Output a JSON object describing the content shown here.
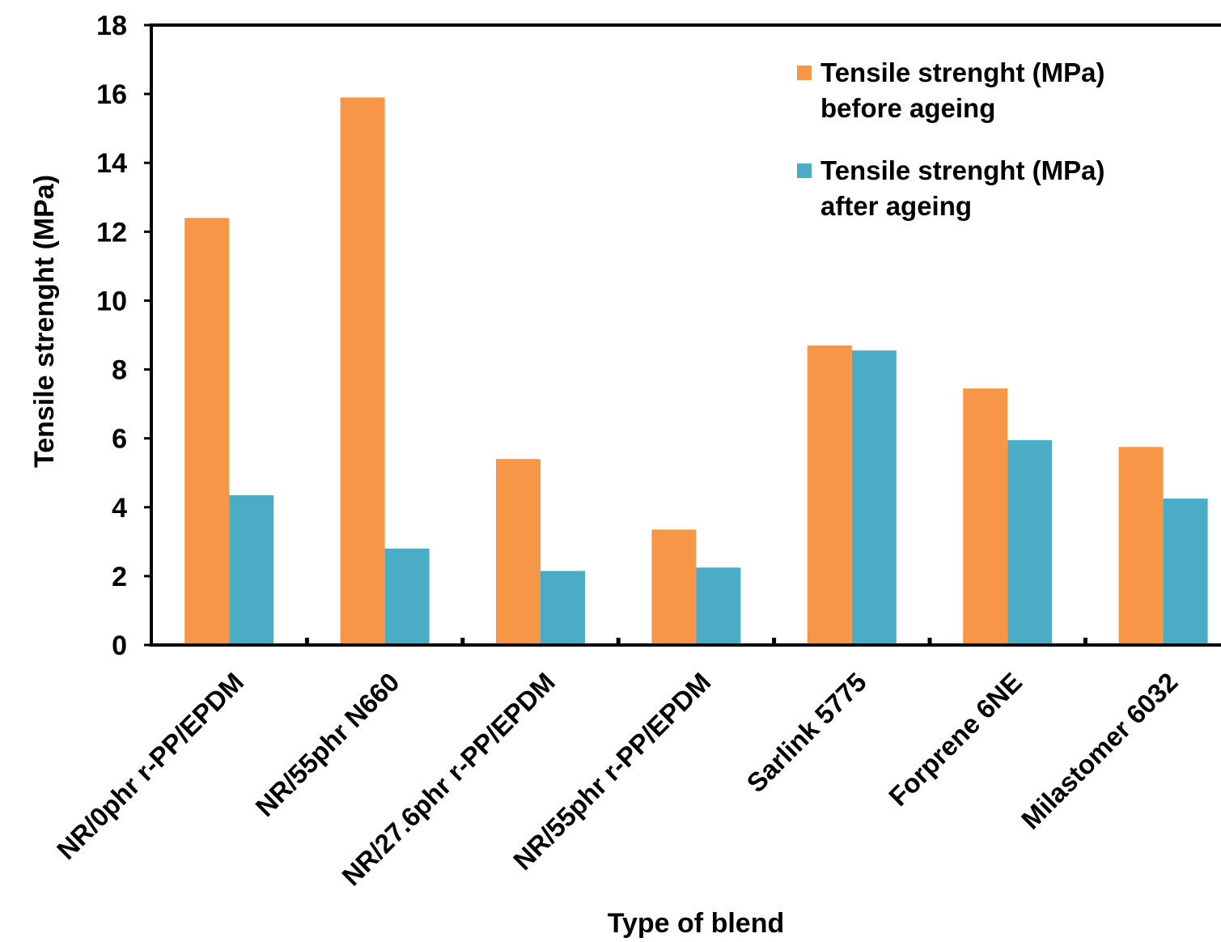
{
  "chart_data": {
    "type": "bar",
    "xlabel": "Type of blend",
    "ylabel": "Tensile strenght (MPa)",
    "ylim": [
      0,
      18
    ],
    "yticks": [
      0,
      2,
      4,
      6,
      8,
      10,
      12,
      14,
      16,
      18
    ],
    "grid": false,
    "legend_position": "top-right",
    "categories": [
      "NR/0phr r-PP/EPDM",
      "NR/55phr N660",
      "NR/27.6phr r-PP/EPDM",
      "NR/55phr r-PP/EPDM",
      "Sarlink 5775",
      "Forprene 6NE",
      "Milastomer 6032"
    ],
    "series": [
      {
        "name": "Tensile strenght (MPa) before ageing",
        "name_lines": [
          "Tensile strenght (MPa)",
          "before ageing"
        ],
        "color": "#F79646",
        "values": [
          12.4,
          15.9,
          5.4,
          3.35,
          8.7,
          7.45,
          5.75
        ]
      },
      {
        "name": "Tensile strenght (MPa) after ageing",
        "name_lines": [
          "Tensile strenght (MPa)",
          "after ageing"
        ],
        "color": "#4BACC6",
        "values": [
          4.35,
          2.8,
          2.15,
          2.25,
          8.55,
          5.95,
          4.25
        ]
      }
    ]
  }
}
